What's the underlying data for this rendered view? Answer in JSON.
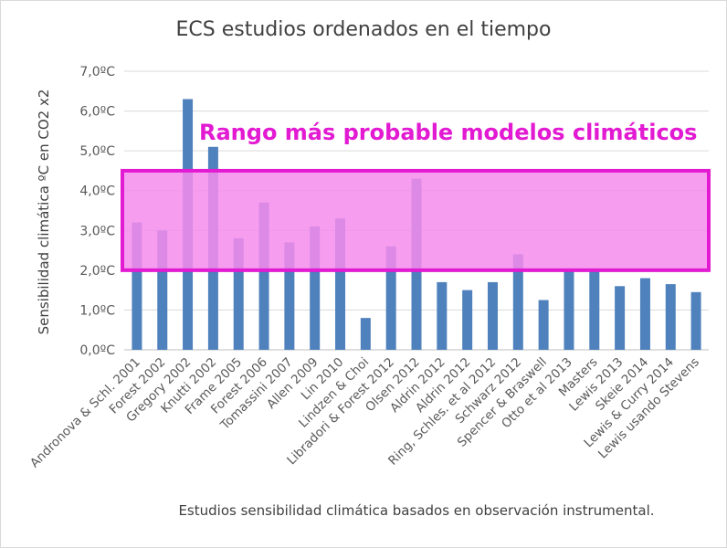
{
  "chart_data": {
    "type": "bar",
    "title": "ECS estudios ordenados en el tiempo",
    "xlabel": "Estudios sensibilidad climática basados en observación instrumental.",
    "ylabel": "Sensibilidad climática ºC en CO2 x2",
    "ylim": [
      0,
      7
    ],
    "y_ticks": [
      "0,0ºC",
      "1,0ºC",
      "2,0ºC",
      "3,0ºC",
      "4,0ºC",
      "5,0ºC",
      "6,0ºC",
      "7,0ºC"
    ],
    "grid": true,
    "categories": [
      "Andronova & Schl. 2001",
      "Forest 2002",
      "Gregory 2002",
      "Knutti 2002",
      "Frame 2005",
      "Forest 2006",
      "Tomassini 2007",
      "Allen 2009",
      "Lin 2010",
      "Lindzen & Choi",
      "Libradori & Forest 2012",
      "Olsen 2012",
      "Aldrin 2012",
      "Aldrin 2012",
      "Ring, Schles. et al 2012",
      "Schwarz 2012",
      "Spencer & Braswell",
      "Otto et al 2013",
      "Masters",
      "Lewis 2013",
      "Skeie 2014",
      "Lewis & Curry 2014",
      "Lewis usando Stevens"
    ],
    "values": [
      3.2,
      3.0,
      6.3,
      5.1,
      2.8,
      3.7,
      2.7,
      3.1,
      3.3,
      0.8,
      2.6,
      4.3,
      1.7,
      1.5,
      1.7,
      2.4,
      1.25,
      2.0,
      2.0,
      1.6,
      1.8,
      1.65,
      1.45
    ],
    "bar_color": "#4f81bd",
    "annotation": {
      "label": "Rango más probable modelos climáticos",
      "range": [
        2.0,
        4.5
      ],
      "fill_color": "#f48cec",
      "border_color": "#e21ad2"
    }
  }
}
